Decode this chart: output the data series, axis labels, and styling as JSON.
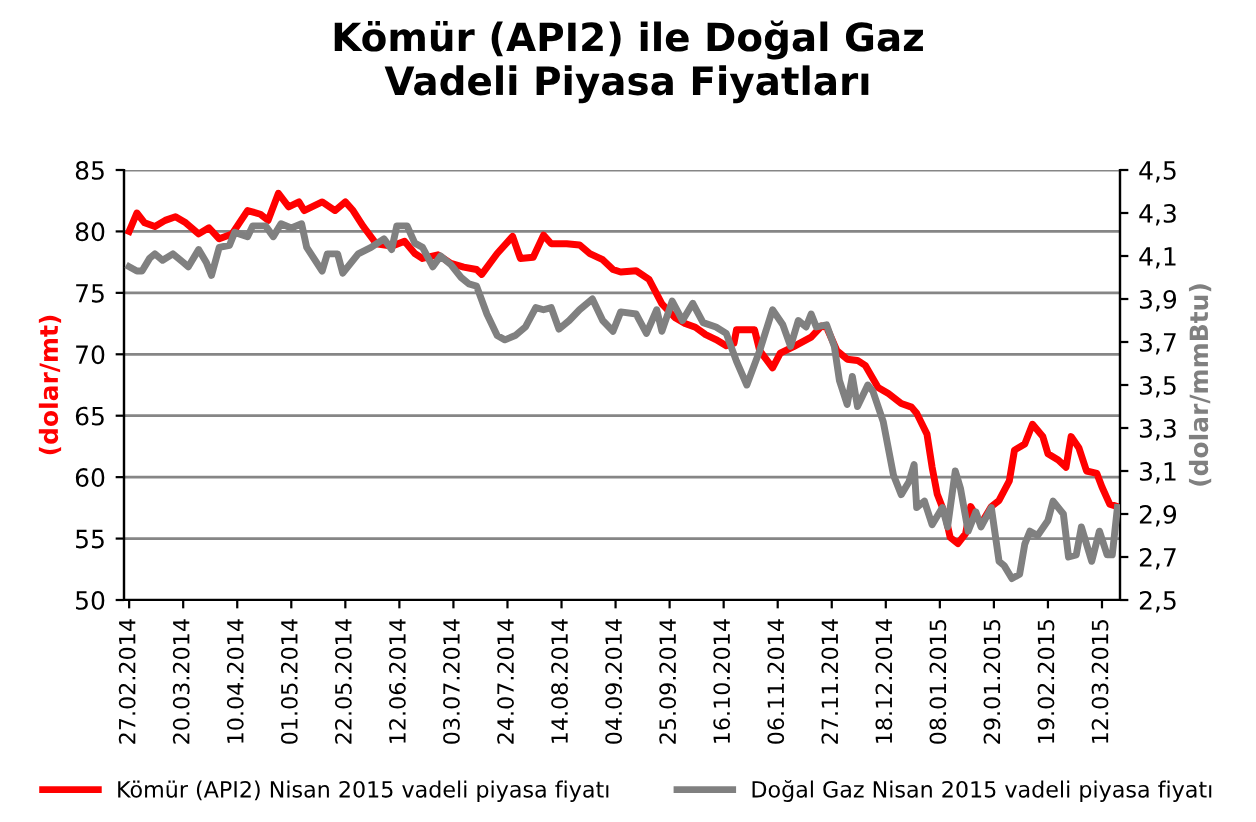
{
  "chart_data": {
    "type": "line",
    "title": "Kömür (API2) ile Doğal Gaz\nVadeli Piyasa Fiyatları",
    "ylabel": "(dolar/mt)",
    "y2label": "(dolar/mmBtu)",
    "xlim": [
      "2014-02-25",
      "2015-03-19"
    ],
    "xticks": [
      {
        "value": "2014-02-27",
        "label": "27.02.2014"
      },
      {
        "value": "2014-03-20",
        "label": "20.03.2014"
      },
      {
        "value": "2014-04-10",
        "label": "10.04.2014"
      },
      {
        "value": "2014-05-01",
        "label": "01.05.2014"
      },
      {
        "value": "2014-05-22",
        "label": "22.05.2014"
      },
      {
        "value": "2014-06-12",
        "label": "12.06.2014"
      },
      {
        "value": "2014-07-03",
        "label": "03.07.2014"
      },
      {
        "value": "2014-07-24",
        "label": "24.07.2014"
      },
      {
        "value": "2014-08-14",
        "label": "14.08.2014"
      },
      {
        "value": "2014-09-04",
        "label": "04.09.2014"
      },
      {
        "value": "2014-09-25",
        "label": "25.09.2014"
      },
      {
        "value": "2014-10-16",
        "label": "16.10.2014"
      },
      {
        "value": "2014-11-06",
        "label": "06.11.2014"
      },
      {
        "value": "2014-11-27",
        "label": "27.11.2014"
      },
      {
        "value": "2014-12-18",
        "label": "18.12.2014"
      },
      {
        "value": "2015-01-08",
        "label": "08.01.2015"
      },
      {
        "value": "2015-01-29",
        "label": "29.01.2015"
      },
      {
        "value": "2015-02-19",
        "label": "19.02.2015"
      },
      {
        "value": "2015-03-12",
        "label": "12.03.2015"
      }
    ],
    "ylim": [
      50,
      85
    ],
    "yticks": [
      50,
      55,
      60,
      65,
      70,
      75,
      80,
      85
    ],
    "y2lim": [
      2.5,
      4.5
    ],
    "y2ticks": [
      {
        "value": 2.5,
        "label": "2,5"
      },
      {
        "value": 2.7,
        "label": "2,7"
      },
      {
        "value": 2.9,
        "label": "2,9"
      },
      {
        "value": 3.1,
        "label": "3,1"
      },
      {
        "value": 3.3,
        "label": "3,3"
      },
      {
        "value": 3.5,
        "label": "3,5"
      },
      {
        "value": 3.7,
        "label": "3,7"
      },
      {
        "value": 3.9,
        "label": "3,9"
      },
      {
        "value": 4.1,
        "label": "4,1"
      },
      {
        "value": 4.3,
        "label": "4,3"
      },
      {
        "value": 4.5,
        "label": "4,5"
      }
    ],
    "grid": "y",
    "legend": "bottom",
    "marker": "none",
    "line_style": "solid",
    "series": [
      {
        "name": "Kömür (API2) Nisan 2015 vadeli piyasa fiyatı",
        "color": "#ff0000",
        "x": [
          "2014-02-27",
          "2014-03-02",
          "2014-03-05",
          "2014-03-09",
          "2014-03-13",
          "2014-03-17",
          "2014-03-21",
          "2014-03-26",
          "2014-03-30",
          "2014-04-03",
          "2014-04-08",
          "2014-04-14",
          "2014-04-19",
          "2014-04-22",
          "2014-04-26",
          "2014-04-30",
          "2014-05-04",
          "2014-05-06",
          "2014-05-13",
          "2014-05-18",
          "2014-05-22",
          "2014-05-25",
          "2014-05-29",
          "2014-06-03",
          "2014-06-09",
          "2014-06-14",
          "2014-06-18",
          "2014-06-21",
          "2014-06-27",
          "2014-07-02",
          "2014-07-07",
          "2014-07-12",
          "2014-07-14",
          "2014-07-20",
          "2014-07-26",
          "2014-07-29",
          "2014-08-03",
          "2014-08-07",
          "2014-08-10",
          "2014-08-16",
          "2014-08-21",
          "2014-08-25",
          "2014-08-30",
          "2014-09-03",
          "2014-09-06",
          "2014-09-12",
          "2014-09-17",
          "2014-09-22",
          "2014-09-27",
          "2014-10-01",
          "2014-10-05",
          "2014-10-09",
          "2014-10-13",
          "2014-10-17",
          "2014-10-20",
          "2014-10-21",
          "2014-10-28",
          "2014-10-30",
          "2014-11-04",
          "2014-11-07",
          "2014-11-12",
          "2014-11-19",
          "2014-11-23",
          "2014-11-25",
          "2014-11-29",
          "2014-12-03",
          "2014-12-07",
          "2014-12-10",
          "2014-12-15",
          "2014-12-19",
          "2014-12-24",
          "2014-12-28",
          "2014-12-30",
          "2015-01-03",
          "2015-01-05",
          "2015-01-07",
          "2015-01-10",
          "2015-01-12",
          "2015-01-15",
          "2015-01-18",
          "2015-01-20",
          "2015-01-24",
          "2015-01-28",
          "2015-01-31",
          "2015-02-04",
          "2015-02-06",
          "2015-02-10",
          "2015-02-13",
          "2015-02-17",
          "2015-02-19",
          "2015-02-23",
          "2015-02-26",
          "2015-02-28",
          "2015-03-03",
          "2015-03-06",
          "2015-03-10",
          "2015-03-12",
          "2015-03-15",
          "2015-03-18"
        ],
        "values": [
          80.0,
          81.5,
          80.7,
          80.4,
          80.9,
          81.2,
          80.7,
          79.8,
          80.3,
          79.4,
          79.8,
          81.7,
          81.4,
          80.9,
          83.1,
          82.0,
          82.4,
          81.7,
          82.4,
          81.7,
          82.4,
          81.7,
          80.4,
          79.0,
          78.8,
          79.2,
          78.2,
          77.8,
          78.1,
          77.4,
          77.1,
          76.9,
          76.5,
          78.2,
          79.6,
          77.8,
          77.9,
          79.7,
          79.0,
          79.0,
          78.9,
          78.2,
          77.7,
          76.9,
          76.7,
          76.8,
          76.1,
          74.1,
          73.0,
          72.5,
          72.2,
          71.6,
          71.2,
          70.7,
          70.9,
          72.0,
          72.0,
          70.3,
          68.9,
          70.1,
          70.6,
          71.4,
          72.3,
          72.2,
          70.3,
          69.6,
          69.5,
          69.1,
          67.3,
          66.8,
          66.0,
          65.7,
          65.2,
          63.5,
          60.8,
          58.6,
          57.0,
          55.1,
          54.6,
          55.4,
          57.6,
          56.2,
          57.6,
          58.1,
          59.7,
          62.2,
          62.7,
          64.3,
          63.3,
          61.9,
          61.4,
          60.8,
          63.3,
          62.4,
          60.5,
          60.3,
          59.2,
          57.8,
          57.6
        ]
      },
      {
        "name": "Doğal Gaz Nisan 2015 vadeli piyasa fiyatı",
        "color": "#808080",
        "axis": "y2",
        "x": [
          "2014-02-27",
          "2014-03-02",
          "2014-03-04",
          "2014-03-07",
          "2014-03-09",
          "2014-03-12",
          "2014-03-16",
          "2014-03-20",
          "2014-03-22",
          "2014-03-26",
          "2014-03-29",
          "2014-03-31",
          "2014-04-03",
          "2014-04-07",
          "2014-04-09",
          "2014-04-14",
          "2014-04-16",
          "2014-04-21",
          "2014-04-24",
          "2014-04-27",
          "2014-05-01",
          "2014-05-05",
          "2014-05-07",
          "2014-05-13",
          "2014-05-15",
          "2014-05-19",
          "2014-05-21",
          "2014-05-27",
          "2014-06-01",
          "2014-06-06",
          "2014-06-09",
          "2014-06-11",
          "2014-06-15",
          "2014-06-18",
          "2014-06-21",
          "2014-06-25",
          "2014-06-28",
          "2014-07-02",
          "2014-07-06",
          "2014-07-09",
          "2014-07-12",
          "2014-07-16",
          "2014-07-20",
          "2014-07-23",
          "2014-07-27",
          "2014-07-31",
          "2014-08-04",
          "2014-08-07",
          "2014-08-10",
          "2014-08-13",
          "2014-08-17",
          "2014-08-21",
          "2014-08-26",
          "2014-08-30",
          "2014-09-03",
          "2014-09-06",
          "2014-09-12",
          "2014-09-16",
          "2014-09-20",
          "2014-09-22",
          "2014-09-26",
          "2014-09-30",
          "2014-10-04",
          "2014-10-08",
          "2014-10-13",
          "2014-10-17",
          "2014-10-21",
          "2014-10-25",
          "2014-10-30",
          "2014-11-04",
          "2014-11-08",
          "2014-11-11",
          "2014-11-14",
          "2014-11-17",
          "2014-11-19",
          "2014-11-21",
          "2014-11-25",
          "2014-11-28",
          "2014-11-30",
          "2014-12-03",
          "2014-12-05",
          "2014-12-07",
          "2014-12-11",
          "2014-12-13",
          "2014-12-17",
          "2014-12-21",
          "2014-12-24",
          "2014-12-27",
          "2014-12-29",
          "2014-12-30",
          "2015-01-02",
          "2015-01-05",
          "2015-01-09",
          "2015-01-11",
          "2015-01-14",
          "2015-01-16",
          "2015-01-19",
          "2015-01-22",
          "2015-01-24",
          "2015-01-28",
          "2015-01-31",
          "2015-02-02",
          "2015-02-05",
          "2015-02-08",
          "2015-02-10",
          "2015-02-12",
          "2015-02-15",
          "2015-02-19",
          "2015-02-21",
          "2015-02-25",
          "2015-02-27",
          "2015-03-02",
          "2015-03-04",
          "2015-03-08",
          "2015-03-11",
          "2015-03-14",
          "2015-03-16",
          "2015-03-18"
        ],
        "values": [
          4.05,
          4.03,
          4.03,
          4.09,
          4.11,
          4.08,
          4.11,
          4.07,
          4.05,
          4.13,
          4.07,
          4.01,
          4.14,
          4.15,
          4.21,
          4.19,
          4.24,
          4.24,
          4.19,
          4.25,
          4.23,
          4.25,
          4.14,
          4.03,
          4.11,
          4.11,
          4.02,
          4.11,
          4.14,
          4.18,
          4.13,
          4.24,
          4.24,
          4.16,
          4.14,
          4.05,
          4.1,
          4.06,
          4.0,
          3.97,
          3.96,
          3.83,
          3.73,
          3.71,
          3.73,
          3.77,
          3.86,
          3.85,
          3.86,
          3.76,
          3.8,
          3.85,
          3.9,
          3.8,
          3.75,
          3.84,
          3.83,
          3.74,
          3.85,
          3.75,
          3.89,
          3.8,
          3.88,
          3.79,
          3.77,
          3.74,
          3.61,
          3.5,
          3.66,
          3.85,
          3.78,
          3.68,
          3.8,
          3.77,
          3.83,
          3.77,
          3.78,
          3.68,
          3.52,
          3.41,
          3.54,
          3.4,
          3.5,
          3.47,
          3.33,
          3.08,
          2.99,
          3.05,
          3.13,
          2.93,
          2.96,
          2.85,
          2.93,
          2.84,
          3.1,
          3.02,
          2.82,
          2.91,
          2.84,
          2.93,
          2.68,
          2.66,
          2.6,
          2.62,
          2.76,
          2.82,
          2.8,
          2.87,
          2.96,
          2.9,
          2.7,
          2.71,
          2.84,
          2.68,
          2.82,
          2.71,
          2.71,
          2.93
        ]
      }
    ]
  }
}
